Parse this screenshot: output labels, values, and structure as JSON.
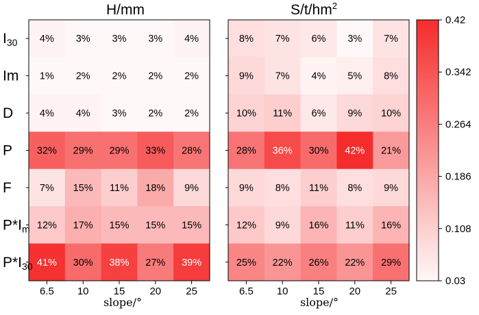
{
  "chart_data": [
    {
      "type": "heatmap",
      "title": "H/mm",
      "rows": [
        "I30",
        "Im",
        "D",
        "P",
        "F",
        "P*Im",
        "P*I30"
      ],
      "x": [
        "6.5",
        "10",
        "15",
        "20",
        "25"
      ],
      "xlabel": "slope/°",
      "cell_labels": [
        [
          "4%",
          "3%",
          "3%",
          "3%",
          "4%"
        ],
        [
          "1%",
          "2%",
          "2%",
          "2%",
          "2%"
        ],
        [
          "4%",
          "4%",
          "3%",
          "2%",
          "2%"
        ],
        [
          "32%",
          "29%",
          "29%",
          "33%",
          "28%"
        ],
        [
          "7%",
          "15%",
          "11%",
          "18%",
          "9%"
        ],
        [
          "12%",
          "17%",
          "15%",
          "15%",
          "15%"
        ],
        [
          "41%",
          "30%",
          "38%",
          "27%",
          "39%"
        ]
      ],
      "values": [
        [
          0.04,
          0.03,
          0.03,
          0.03,
          0.04
        ],
        [
          0.01,
          0.02,
          0.02,
          0.02,
          0.02
        ],
        [
          0.04,
          0.04,
          0.03,
          0.02,
          0.02
        ],
        [
          0.32,
          0.29,
          0.29,
          0.33,
          0.28
        ],
        [
          0.07,
          0.15,
          0.11,
          0.18,
          0.09
        ],
        [
          0.12,
          0.17,
          0.15,
          0.15,
          0.15
        ],
        [
          0.41,
          0.3,
          0.38,
          0.27,
          0.39
        ]
      ]
    },
    {
      "type": "heatmap",
      "title": "S/t/hm",
      "title_sup": "2",
      "rows": [
        "I30",
        "Im",
        "D",
        "P",
        "F",
        "P*Im",
        "P*I30"
      ],
      "x": [
        "6.5",
        "10",
        "15",
        "20",
        "25"
      ],
      "xlabel": "slope/°",
      "cell_labels": [
        [
          "8%",
          "7%",
          "6%",
          "3%",
          "7%"
        ],
        [
          "9%",
          "7%",
          "4%",
          "5%",
          "8%"
        ],
        [
          "10%",
          "11%",
          "6%",
          "9%",
          "10%"
        ],
        [
          "28%",
          "36%",
          "30%",
          "42%",
          "21%"
        ],
        [
          "9%",
          "8%",
          "11%",
          "8%",
          "9%"
        ],
        [
          "12%",
          "9%",
          "16%",
          "11%",
          "16%"
        ],
        [
          "25%",
          "22%",
          "26%",
          "22%",
          "29%"
        ]
      ],
      "values": [
        [
          0.08,
          0.07,
          0.06,
          0.03,
          0.07
        ],
        [
          0.09,
          0.07,
          0.04,
          0.05,
          0.08
        ],
        [
          0.1,
          0.11,
          0.06,
          0.09,
          0.1
        ],
        [
          0.28,
          0.36,
          0.3,
          0.42,
          0.21
        ],
        [
          0.09,
          0.08,
          0.11,
          0.08,
          0.09
        ],
        [
          0.12,
          0.09,
          0.16,
          0.11,
          0.16
        ],
        [
          0.25,
          0.22,
          0.26,
          0.22,
          0.29
        ]
      ]
    }
  ],
  "row_labels": [
    {
      "main": "I",
      "sub": "30"
    },
    {
      "main": "Im",
      "sub": ""
    },
    {
      "main": "D",
      "sub": ""
    },
    {
      "main": "P",
      "sub": ""
    },
    {
      "main": "F",
      "sub": ""
    },
    {
      "main": "P*I",
      "sub": "m"
    },
    {
      "main": "P*I",
      "sub": "30"
    }
  ],
  "colorbar": {
    "min": 0.03,
    "max": 0.42,
    "ticks": [
      "0.42",
      "0.342",
      "0.264",
      "0.186",
      "0.108",
      "0.03"
    ],
    "color_low": "#fff8f8",
    "color_high": "#f52c2c"
  }
}
